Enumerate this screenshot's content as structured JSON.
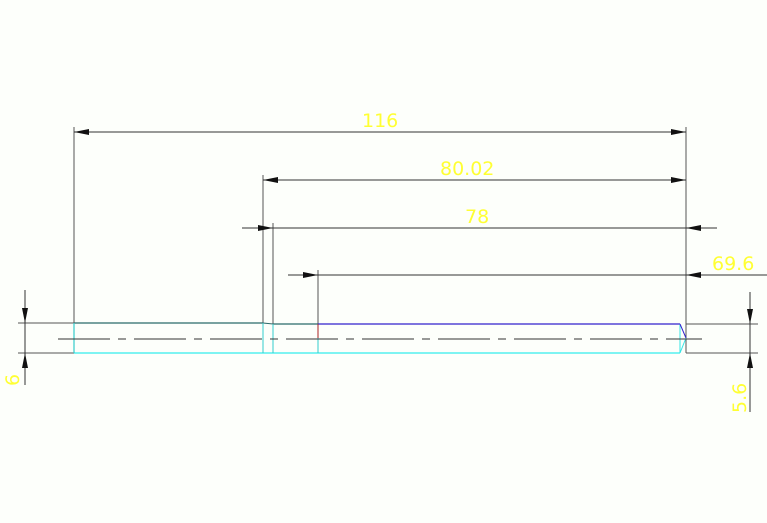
{
  "drawing": {
    "dimensions": {
      "overall_length": "116",
      "length_2": "80.02",
      "length_3": "78",
      "length_4": "69.6",
      "left_diameter": "6",
      "right_diameter": "5.6"
    },
    "colors": {
      "background": "#fdfffb",
      "dimension_text": "#ffff33",
      "outline_cyan": "#33e5e5",
      "outline_blue": "#3322cc",
      "marker_red": "#aa2222",
      "dimension_lines": "#333333"
    }
  }
}
